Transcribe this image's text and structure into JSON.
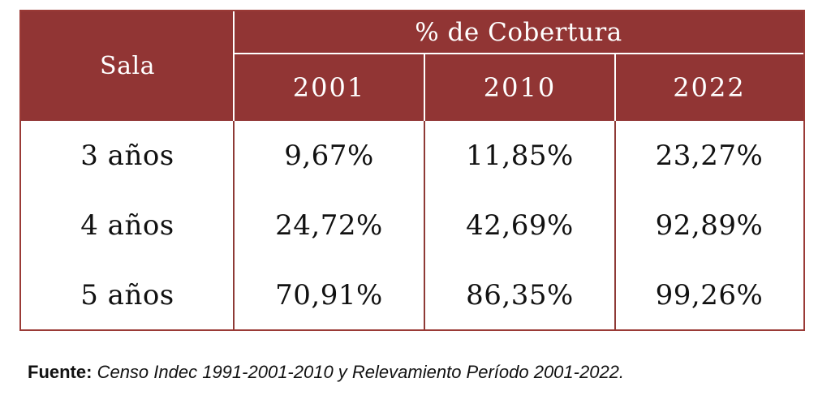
{
  "table": {
    "header": {
      "row_label": "Sala",
      "group_label": "% de Cobertura",
      "years": [
        "2001",
        "2010",
        "2022"
      ]
    },
    "rows": [
      {
        "label": "3 años",
        "values": [
          "9,67%",
          "11,85%",
          "23,27%"
        ]
      },
      {
        "label": "4 años",
        "values": [
          "24,72%",
          "42,69%",
          "92,89%"
        ]
      },
      {
        "label": "5 años",
        "values": [
          "70,91%",
          "86,35%",
          "99,26%"
        ]
      }
    ]
  },
  "source": {
    "label": "Fuente:",
    "text": "Censo Indec 1991-2001-2010 y Relevamiento Período 2001-2022."
  },
  "colors": {
    "header_bg": "#913534",
    "border": "#9a3a36",
    "header_text": "#ffffff",
    "body_text": "#111111"
  }
}
